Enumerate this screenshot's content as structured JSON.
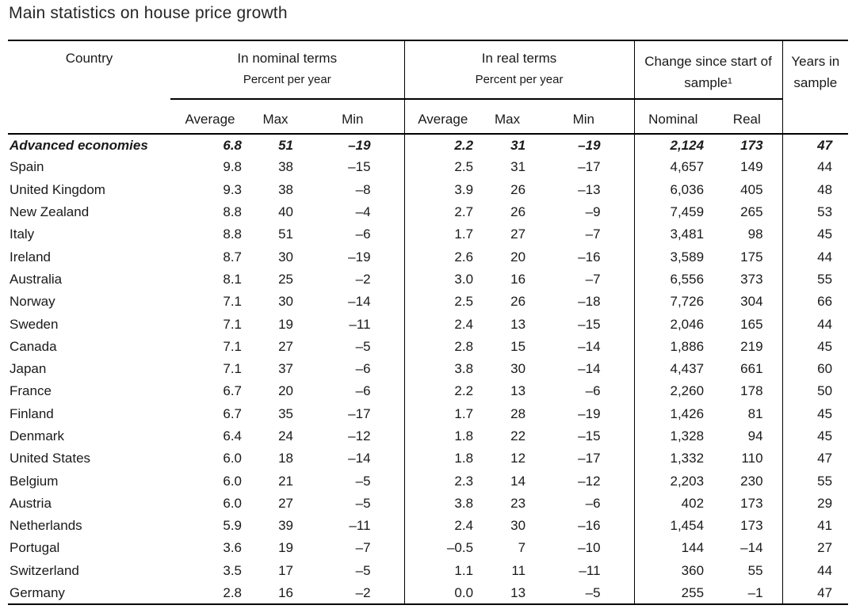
{
  "title": "Main statistics on house price growth",
  "colors": {
    "text": "#1a1a1a",
    "line": "#000000",
    "background": "#ffffff"
  },
  "table": {
    "group_headers": {
      "country": "Country",
      "nominal": "In nominal terms",
      "nominal_sub": "Percent per year",
      "real": "In real terms",
      "real_sub": "Percent per year",
      "change": "Change since start of sample¹",
      "years": "Years in sample"
    },
    "col_headers": [
      "Average",
      "Max",
      "Min",
      "Average",
      "Max",
      "Min",
      "Nominal",
      "Real"
    ],
    "rows": [
      {
        "country": "Advanced economies",
        "emphasis": true,
        "values": [
          "6.8",
          "51",
          "–19",
          "2.2",
          "31",
          "–19",
          "2,124",
          "173",
          "47"
        ]
      },
      {
        "country": "Spain",
        "emphasis": false,
        "values": [
          "9.8",
          "38",
          "–15",
          "2.5",
          "31",
          "–17",
          "4,657",
          "149",
          "44"
        ]
      },
      {
        "country": "United Kingdom",
        "emphasis": false,
        "values": [
          "9.3",
          "38",
          "–8",
          "3.9",
          "26",
          "–13",
          "6,036",
          "405",
          "48"
        ]
      },
      {
        "country": "New Zealand",
        "emphasis": false,
        "values": [
          "8.8",
          "40",
          "–4",
          "2.7",
          "26",
          "–9",
          "7,459",
          "265",
          "53"
        ]
      },
      {
        "country": "Italy",
        "emphasis": false,
        "values": [
          "8.8",
          "51",
          "–6",
          "1.7",
          "27",
          "–7",
          "3,481",
          "98",
          "45"
        ]
      },
      {
        "country": "Ireland",
        "emphasis": false,
        "values": [
          "8.7",
          "30",
          "–19",
          "2.6",
          "20",
          "–16",
          "3,589",
          "175",
          "44"
        ]
      },
      {
        "country": "Australia",
        "emphasis": false,
        "values": [
          "8.1",
          "25",
          "–2",
          "3.0",
          "16",
          "–7",
          "6,556",
          "373",
          "55"
        ]
      },
      {
        "country": "Norway",
        "emphasis": false,
        "values": [
          "7.1",
          "30",
          "–14",
          "2.5",
          "26",
          "–18",
          "7,726",
          "304",
          "66"
        ]
      },
      {
        "country": "Sweden",
        "emphasis": false,
        "values": [
          "7.1",
          "19",
          "–11",
          "2.4",
          "13",
          "–15",
          "2,046",
          "165",
          "44"
        ]
      },
      {
        "country": "Canada",
        "emphasis": false,
        "values": [
          "7.1",
          "27",
          "–5",
          "2.8",
          "15",
          "–14",
          "1,886",
          "219",
          "45"
        ]
      },
      {
        "country": "Japan",
        "emphasis": false,
        "values": [
          "7.1",
          "37",
          "–6",
          "3.8",
          "30",
          "–14",
          "4,437",
          "661",
          "60"
        ]
      },
      {
        "country": "France",
        "emphasis": false,
        "values": [
          "6.7",
          "20",
          "–6",
          "2.2",
          "13",
          "–6",
          "2,260",
          "178",
          "50"
        ]
      },
      {
        "country": "Finland",
        "emphasis": false,
        "values": [
          "6.7",
          "35",
          "–17",
          "1.7",
          "28",
          "–19",
          "1,426",
          "81",
          "45"
        ]
      },
      {
        "country": "Denmark",
        "emphasis": false,
        "values": [
          "6.4",
          "24",
          "–12",
          "1.8",
          "22",
          "–15",
          "1,328",
          "94",
          "45"
        ]
      },
      {
        "country": "United States",
        "emphasis": false,
        "values": [
          "6.0",
          "18",
          "–14",
          "1.8",
          "12",
          "–17",
          "1,332",
          "110",
          "47"
        ]
      },
      {
        "country": "Belgium",
        "emphasis": false,
        "values": [
          "6.0",
          "21",
          "–5",
          "2.3",
          "14",
          "–12",
          "2,203",
          "230",
          "55"
        ]
      },
      {
        "country": "Austria",
        "emphasis": false,
        "values": [
          "6.0",
          "27",
          "–5",
          "3.8",
          "23",
          "–6",
          "402",
          "173",
          "29"
        ]
      },
      {
        "country": "Netherlands",
        "emphasis": false,
        "values": [
          "5.9",
          "39",
          "–11",
          "2.4",
          "30",
          "–16",
          "1,454",
          "173",
          "41"
        ]
      },
      {
        "country": "Portugal",
        "emphasis": false,
        "values": [
          "3.6",
          "19",
          "–7",
          "–0.5",
          "7",
          "–10",
          "144",
          "–14",
          "27"
        ]
      },
      {
        "country": "Switzerland",
        "emphasis": false,
        "values": [
          "3.5",
          "17",
          "–5",
          "1.1",
          "11",
          "–11",
          "360",
          "55",
          "44"
        ]
      },
      {
        "country": "Germany",
        "emphasis": false,
        "values": [
          "2.8",
          "16",
          "–2",
          "0.0",
          "13",
          "–5",
          "255",
          "–1",
          "47"
        ]
      }
    ]
  }
}
